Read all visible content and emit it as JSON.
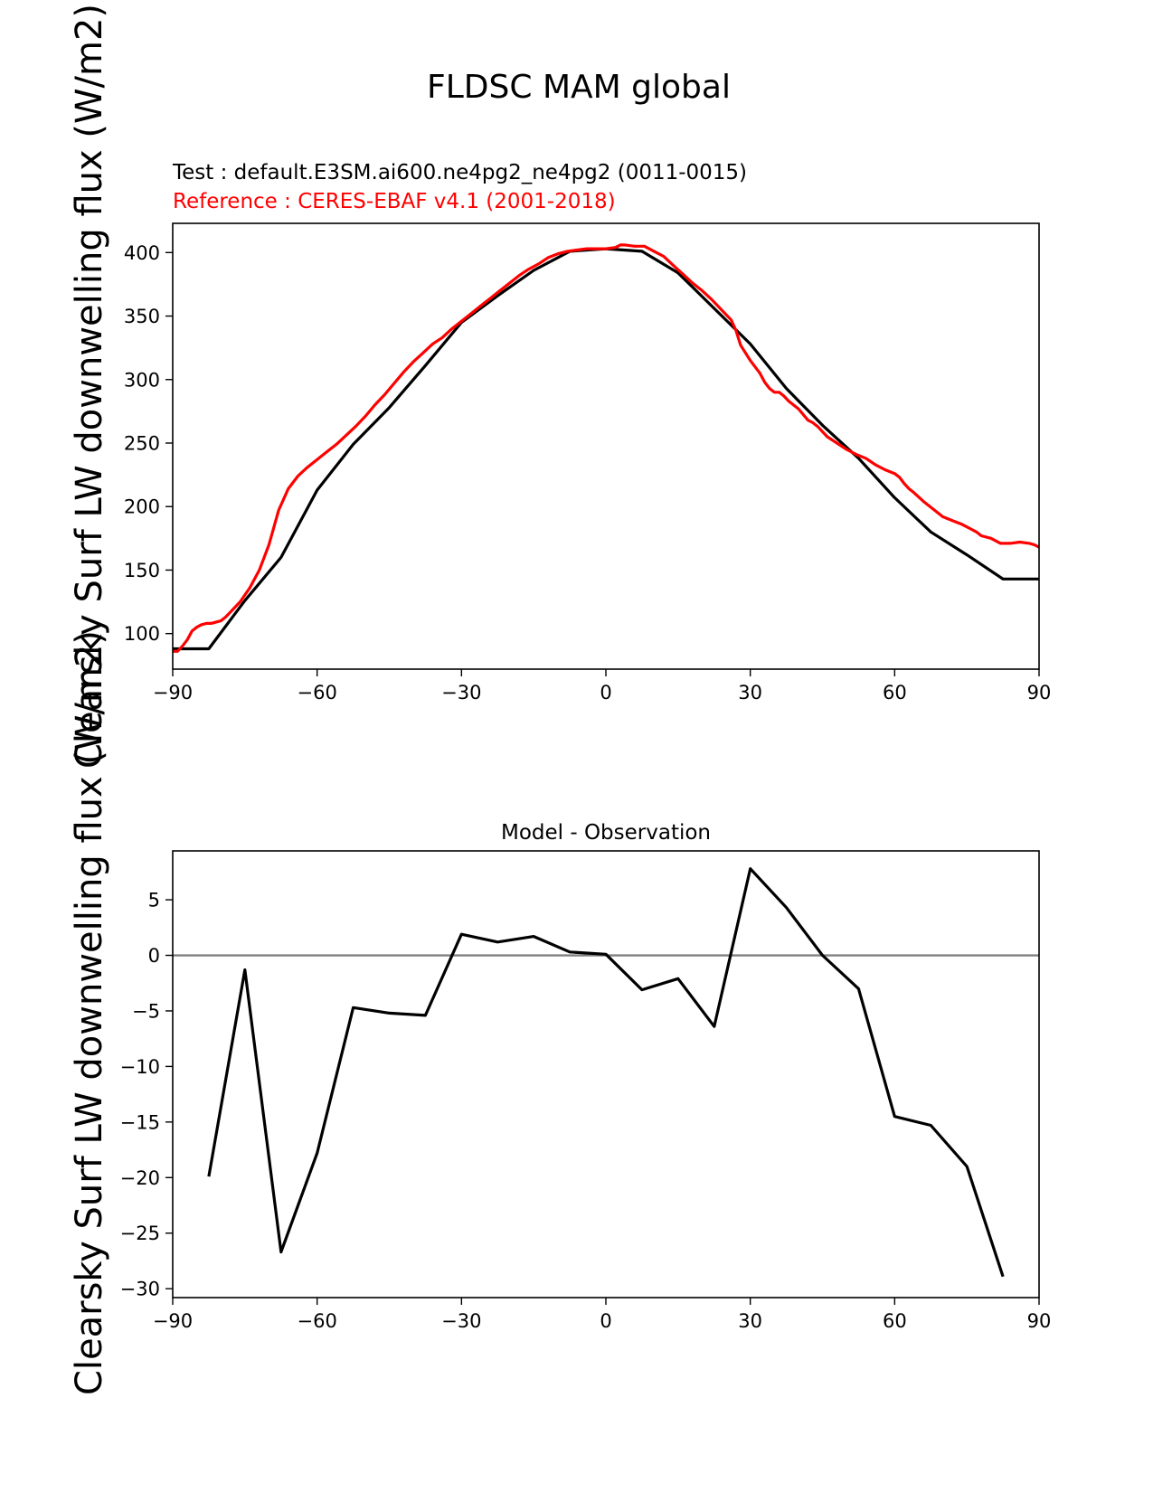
{
  "figure": {
    "title": "FLDSC MAM global"
  },
  "chart_data": [
    {
      "type": "line",
      "test_label": "Test : default.E3SM.ai600.ne4pg2_ne4pg2 (0011-0015)",
      "reference_label": "Reference : CERES-EBAF v4.1 (2001-2018)",
      "ylabel": "Clearsky Surf LW downwelling flux (W/m2)",
      "xlim": [
        -90,
        90
      ],
      "ylim": [
        72,
        423
      ],
      "xticks": [
        -90,
        -60,
        -30,
        0,
        30,
        60,
        90
      ],
      "xtick_labels": [
        "−90",
        "−60",
        "−30",
        "0",
        "30",
        "60",
        "90"
      ],
      "yticks": [
        100,
        150,
        200,
        250,
        300,
        350,
        400
      ],
      "colors": {
        "test": "#000000",
        "reference": "#ff0000"
      },
      "series": [
        {
          "role": "test",
          "x": [
            -90,
            -82.5,
            -75,
            -67.5,
            -60,
            -52.5,
            -45,
            -37.5,
            -30,
            -22.5,
            -15,
            -7.5,
            0,
            7.5,
            15,
            22.5,
            30,
            37.5,
            45,
            52.5,
            60,
            67.5,
            75,
            82.5,
            90
          ],
          "y": [
            88,
            88,
            126,
            160,
            213,
            249,
            278,
            311,
            345,
            366,
            386,
            401,
            403,
            401,
            384,
            356,
            328,
            293,
            264,
            238,
            207,
            180,
            162,
            143,
            143
          ]
        },
        {
          "role": "reference",
          "x": [
            -90,
            -89,
            -88,
            -87,
            -86,
            -85,
            -84,
            -83,
            -82,
            -80,
            -79,
            -78,
            -76,
            -74,
            -72,
            -70,
            -68,
            -66,
            -64,
            -62,
            -60,
            -58,
            -56,
            -54,
            -52,
            -50,
            -48,
            -46,
            -44,
            -42,
            -40,
            -38,
            -36,
            -34,
            -32,
            -30,
            -28,
            -26,
            -24,
            -22,
            -20,
            -18,
            -16,
            -14,
            -12,
            -10,
            -8,
            -6,
            -4,
            -2,
            0,
            2,
            3,
            4,
            6,
            8,
            10,
            12,
            14,
            16,
            18,
            20,
            22,
            24,
            26,
            27,
            28,
            30,
            32,
            33,
            34,
            35,
            36,
            37,
            38,
            40,
            42,
            43,
            44,
            46,
            48,
            50,
            52,
            54,
            56,
            58,
            60,
            61,
            62,
            63,
            64,
            66,
            68,
            70,
            72,
            74,
            76,
            77,
            78,
            80,
            82,
            84,
            86,
            88,
            89,
            90
          ],
          "y": [
            86,
            86,
            90,
            95,
            102,
            105,
            107,
            108,
            108,
            110,
            113,
            117,
            125,
            136,
            150,
            170,
            197,
            214,
            224,
            231,
            237,
            243,
            249,
            256,
            263,
            271,
            280,
            288,
            297,
            306,
            314,
            321,
            328,
            333,
            340,
            346,
            352,
            358,
            364,
            370,
            376,
            382,
            387,
            391,
            396,
            399,
            401,
            402,
            403,
            403,
            403,
            404,
            406,
            406,
            405,
            405,
            401,
            397,
            390,
            383,
            376,
            370,
            363,
            355,
            347,
            339,
            327,
            315,
            305,
            298,
            293,
            290,
            290,
            287,
            283,
            277,
            268,
            266,
            263,
            255,
            250,
            245,
            241,
            238,
            233,
            229,
            226,
            223,
            218,
            214,
            211,
            204,
            198,
            192,
            189,
            186,
            182,
            180,
            177,
            175,
            171,
            171,
            172,
            171,
            170,
            168
          ]
        }
      ]
    },
    {
      "type": "line",
      "title": "Model - Observation",
      "xlim": [
        -90,
        90
      ],
      "ylim": [
        -30.8,
        9.4
      ],
      "xticks": [
        -90,
        -60,
        -30,
        0,
        30,
        60,
        90
      ],
      "xtick_labels": [
        "−90",
        "−60",
        "−30",
        "0",
        "30",
        "60",
        "90"
      ],
      "yticks": [
        5,
        0,
        -5,
        -10,
        -15,
        -20,
        -25,
        -30
      ],
      "ytick_labels": [
        "5",
        "0",
        "−5",
        "−10",
        "−15",
        "−20",
        "−25",
        "−30"
      ],
      "zero_line_color": "#808080",
      "colors": {
        "diff": "#000000"
      },
      "series": [
        {
          "role": "diff",
          "x": [
            -82.5,
            -75,
            -67.5,
            -60,
            -52.5,
            -45,
            -37.5,
            -30,
            -22.5,
            -15,
            -7.5,
            0,
            7.5,
            15,
            22.5,
            30,
            37.5,
            45,
            52.5,
            60,
            67.5,
            75,
            82.5
          ],
          "y": [
            -19.9,
            -1.3,
            -26.7,
            -17.8,
            -4.7,
            -5.2,
            -5.4,
            1.9,
            1.2,
            1.7,
            0.3,
            0.1,
            -3.1,
            -2.1,
            -6.4,
            7.8,
            4.3,
            0.0,
            -3.0,
            -14.5,
            -15.3,
            -19.0,
            -28.9
          ]
        }
      ]
    }
  ]
}
